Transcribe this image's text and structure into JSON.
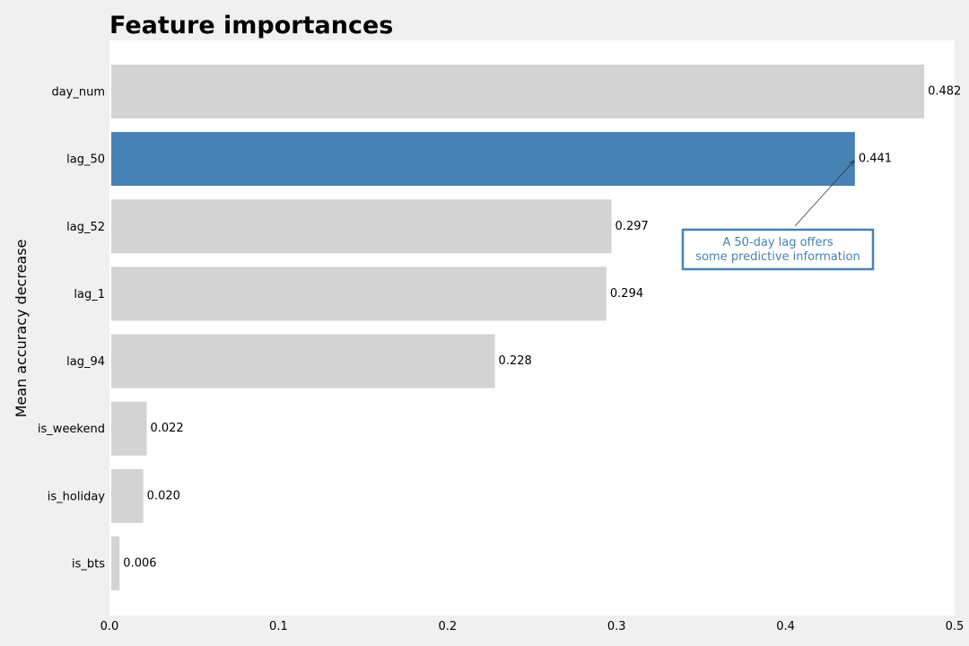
{
  "chart_data": {
    "type": "bar",
    "orientation": "horizontal",
    "title": "Feature importances",
    "xlabel": "",
    "ylabel": "Mean accuracy decrease",
    "xlim": [
      0.0,
      0.5
    ],
    "xticks": [
      "0.0",
      "0.1",
      "0.2",
      "0.3",
      "0.4",
      "0.5"
    ],
    "categories": [
      "day_num",
      "lag_50",
      "lag_52",
      "lag_1",
      "lag_94",
      "is_weekend",
      "is_holiday",
      "is_bts"
    ],
    "values": [
      0.482,
      0.441,
      0.297,
      0.294,
      0.228,
      0.022,
      0.02,
      0.006
    ],
    "value_labels": [
      "0.482",
      "0.441",
      "0.297",
      "0.294",
      "0.228",
      "0.022",
      "0.020",
      "0.006"
    ],
    "highlight_category": "lag_50",
    "grid": false,
    "colors": {
      "default_bar": "#d3d3d3",
      "highlight_bar": "#4682b4",
      "background": "#f0f0f0",
      "plot_background": "#ffffff",
      "annotation_text": "#4682b4"
    },
    "annotation": {
      "lines": [
        "A 50-day lag offers",
        "some predictive information"
      ],
      "target_category": "lag_50"
    }
  }
}
